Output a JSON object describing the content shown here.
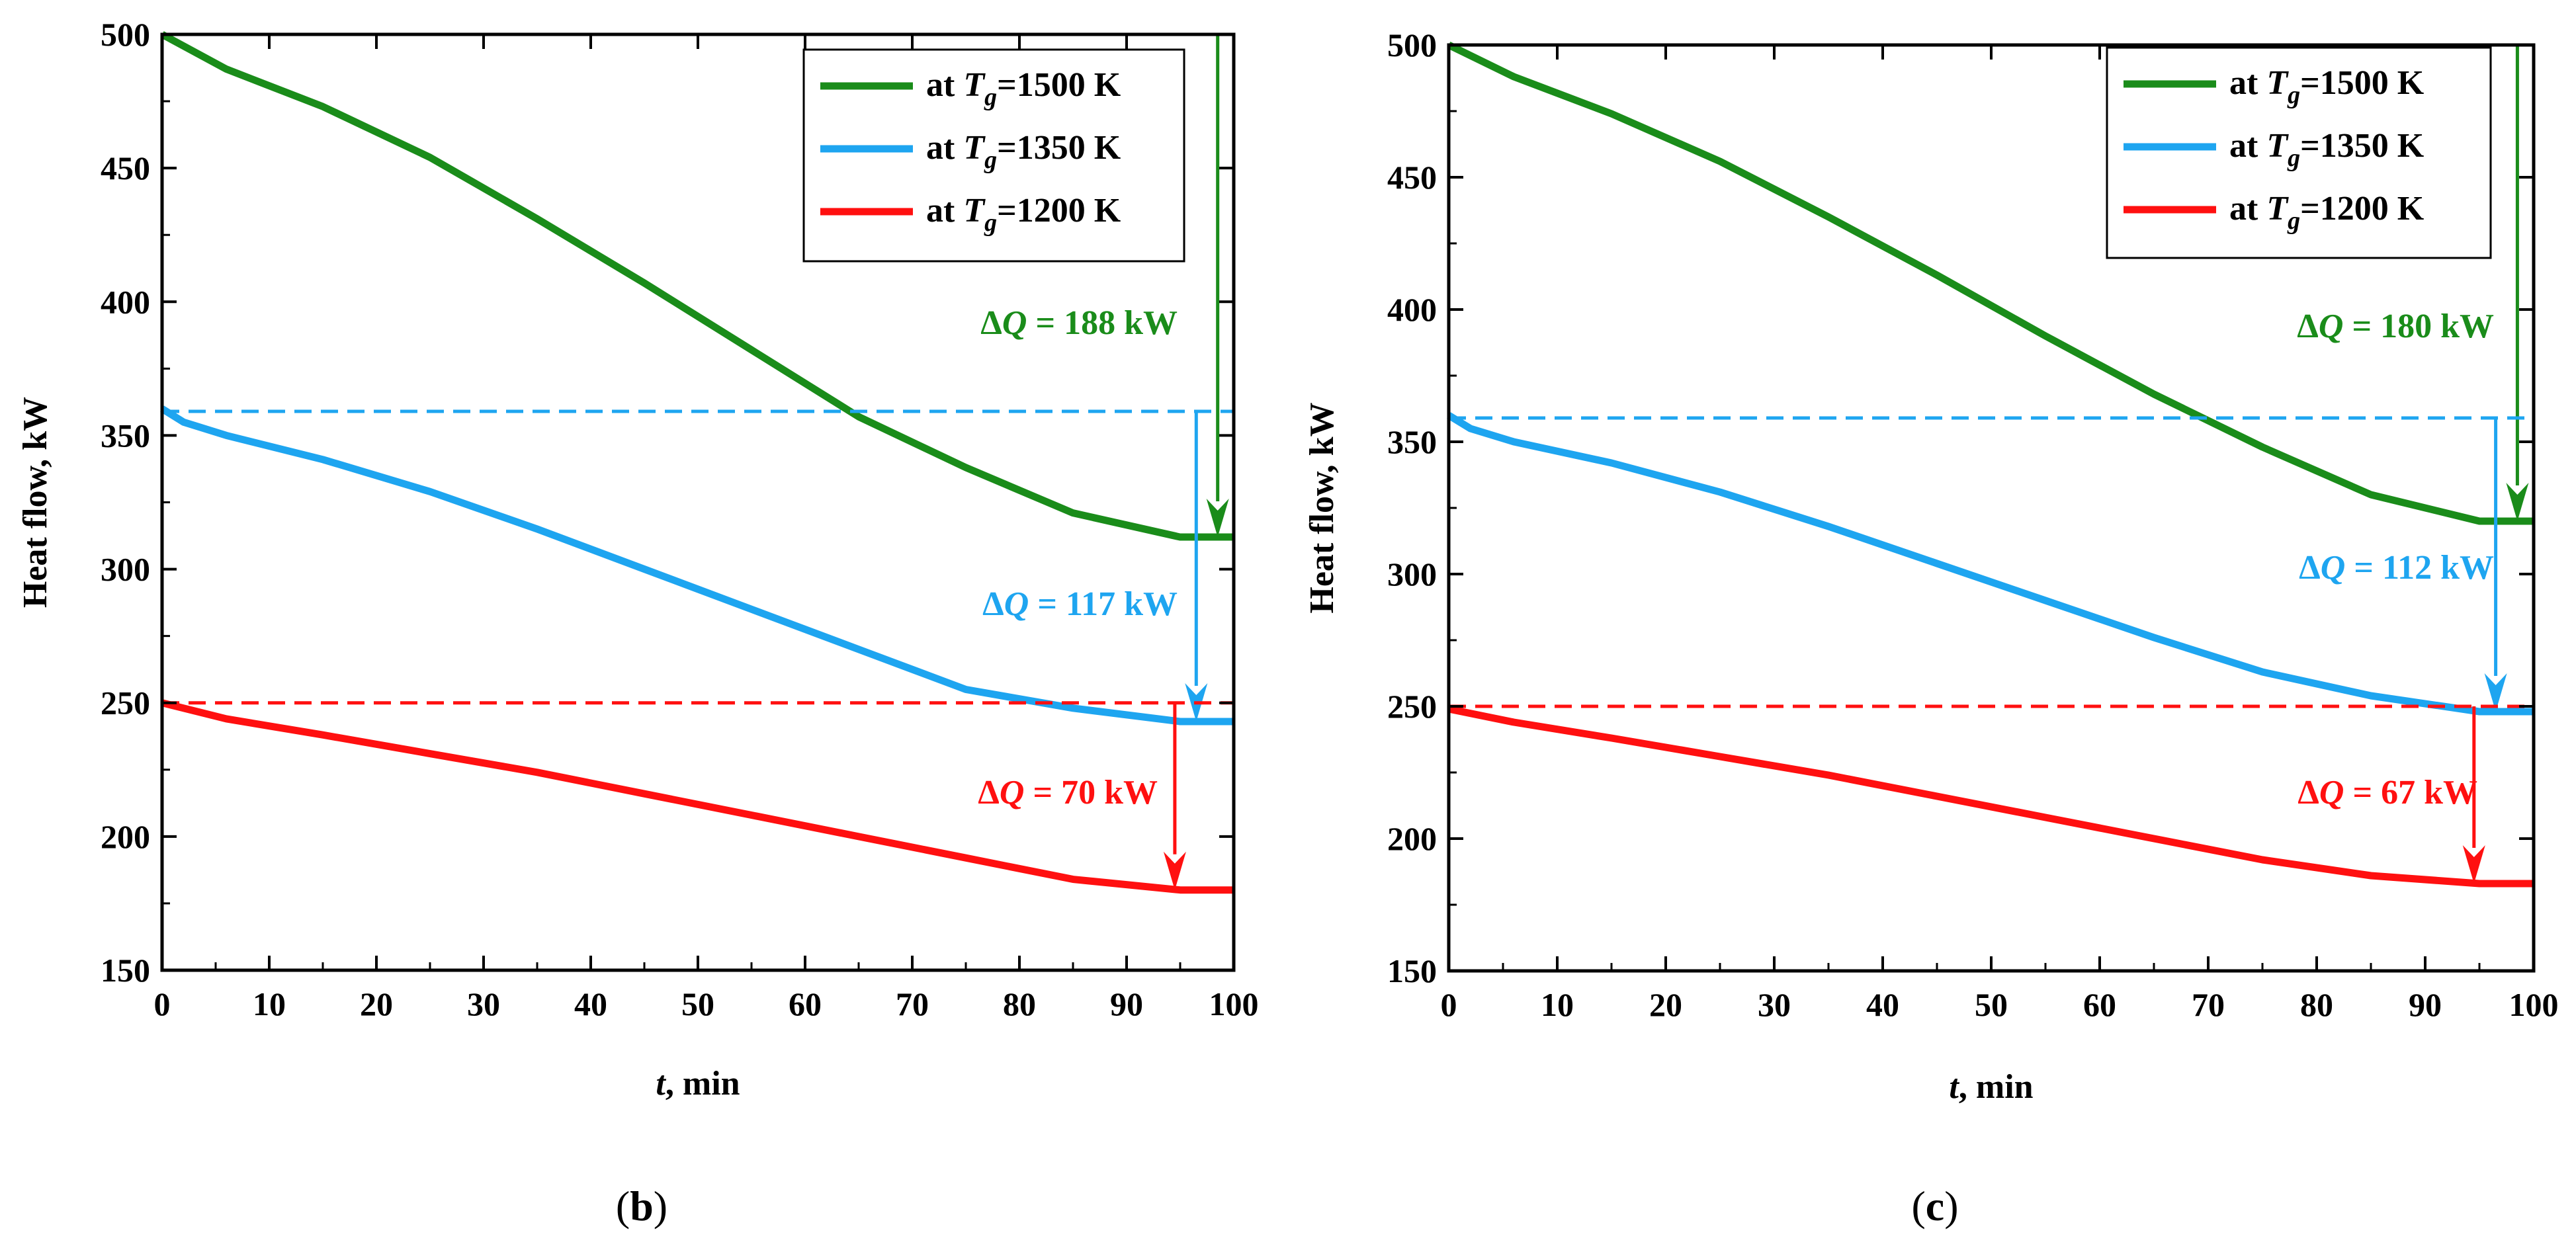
{
  "figure": {
    "panel_labels": [
      "(b)",
      "(c)"
    ]
  },
  "colors": {
    "green": "#1a8c1a",
    "blue": "#1ea5f0",
    "red": "#ff1010",
    "axis": "#000000"
  },
  "chart_data": [
    {
      "type": "line",
      "panel": "(b)",
      "title": "",
      "xlabel_var": "t",
      "xlabel_unit": ", min",
      "ylabel": "Heat flow, kW",
      "xlim": [
        0,
        100
      ],
      "ylim": [
        150,
        500
      ],
      "xticks": [
        0,
        10,
        20,
        30,
        40,
        50,
        60,
        70,
        80,
        90,
        100
      ],
      "yticks": [
        150,
        200,
        250,
        300,
        350,
        400,
        450,
        500
      ],
      "legend_position": "top-right",
      "series": [
        {
          "name": "at Tg=1500 K",
          "legend_prefix": "at ",
          "legend_var": "T",
          "legend_sub": "g",
          "legend_suffix": "=1500 K",
          "color": "#1a8c1a",
          "x": [
            0,
            6,
            15,
            25,
            35,
            45,
            55,
            65,
            75,
            85,
            95,
            100
          ],
          "y": [
            500,
            487,
            473,
            454,
            431,
            407,
            382,
            357,
            338,
            321,
            312,
            312
          ],
          "reference": 500,
          "delta_label": "188 kW",
          "arrow_x": 98.5,
          "arrow_to": 312
        },
        {
          "name": "at Tg=1350 K",
          "legend_prefix": "at ",
          "legend_var": "T",
          "legend_sub": "g",
          "legend_suffix": "=1350 K",
          "color": "#1ea5f0",
          "x": [
            0,
            2,
            6,
            15,
            25,
            35,
            45,
            55,
            65,
            75,
            85,
            95,
            100
          ],
          "y": [
            360,
            355,
            350,
            341,
            329,
            315,
            300,
            285,
            270,
            255,
            248,
            243,
            243
          ],
          "reference": 359,
          "delta_label": "117 kW",
          "arrow_x": 96.5,
          "arrow_to": 243
        },
        {
          "name": "at Tg=1200 K",
          "legend_prefix": "at ",
          "legend_var": "T",
          "legend_sub": "g",
          "legend_suffix": "=1200 K",
          "color": "#ff1010",
          "x": [
            0,
            6,
            15,
            25,
            35,
            45,
            55,
            65,
            75,
            85,
            95,
            100
          ],
          "y": [
            250,
            244,
            238,
            231,
            224,
            216,
            208,
            200,
            192,
            184,
            180,
            180
          ],
          "reference": 250,
          "delta_label": "70 kW",
          "arrow_x": 94.5,
          "arrow_to": 180
        }
      ]
    },
    {
      "type": "line",
      "panel": "(c)",
      "title": "",
      "xlabel_var": "t",
      "xlabel_unit": ", min",
      "ylabel": "Heat flow, kW",
      "xlim": [
        0,
        100
      ],
      "ylim": [
        150,
        500
      ],
      "xticks": [
        0,
        10,
        20,
        30,
        40,
        50,
        60,
        70,
        80,
        90,
        100
      ],
      "yticks": [
        150,
        200,
        250,
        300,
        350,
        400,
        450,
        500
      ],
      "legend_position": "top-right",
      "series": [
        {
          "name": "at Tg=1500 K",
          "legend_prefix": "at ",
          "legend_var": "T",
          "legend_sub": "g",
          "legend_suffix": "=1500 K",
          "color": "#1a8c1a",
          "x": [
            0,
            6,
            15,
            25,
            35,
            45,
            55,
            65,
            75,
            85,
            95,
            100
          ],
          "y": [
            500,
            488,
            474,
            456,
            435,
            413,
            390,
            368,
            348,
            330,
            320,
            320
          ],
          "reference": 500,
          "delta_label": "180 kW",
          "arrow_x": 98.5,
          "arrow_to": 320
        },
        {
          "name": "at Tg=1350 K",
          "legend_prefix": "at ",
          "legend_var": "T",
          "legend_sub": "g",
          "legend_suffix": "=1350 K",
          "color": "#1ea5f0",
          "x": [
            0,
            2,
            6,
            15,
            25,
            35,
            45,
            55,
            65,
            75,
            85,
            95,
            100
          ],
          "y": [
            360,
            355,
            350,
            342,
            331,
            318,
            304,
            290,
            276,
            263,
            254,
            248,
            248
          ],
          "reference": 359,
          "delta_label": "112 kW",
          "arrow_x": 96.5,
          "arrow_to": 248
        },
        {
          "name": "at Tg=1200 K",
          "legend_prefix": "at ",
          "legend_var": "T",
          "legend_sub": "g",
          "legend_suffix": "=1200 K",
          "color": "#ff1010",
          "x": [
            0,
            6,
            15,
            25,
            35,
            45,
            55,
            65,
            75,
            85,
            95,
            100
          ],
          "y": [
            249,
            244,
            238,
            231,
            224,
            216,
            208,
            200,
            192,
            186,
            183,
            183
          ],
          "reference": 250,
          "delta_label": "67 kW",
          "arrow_x": 94.5,
          "arrow_to": 183
        }
      ]
    }
  ]
}
